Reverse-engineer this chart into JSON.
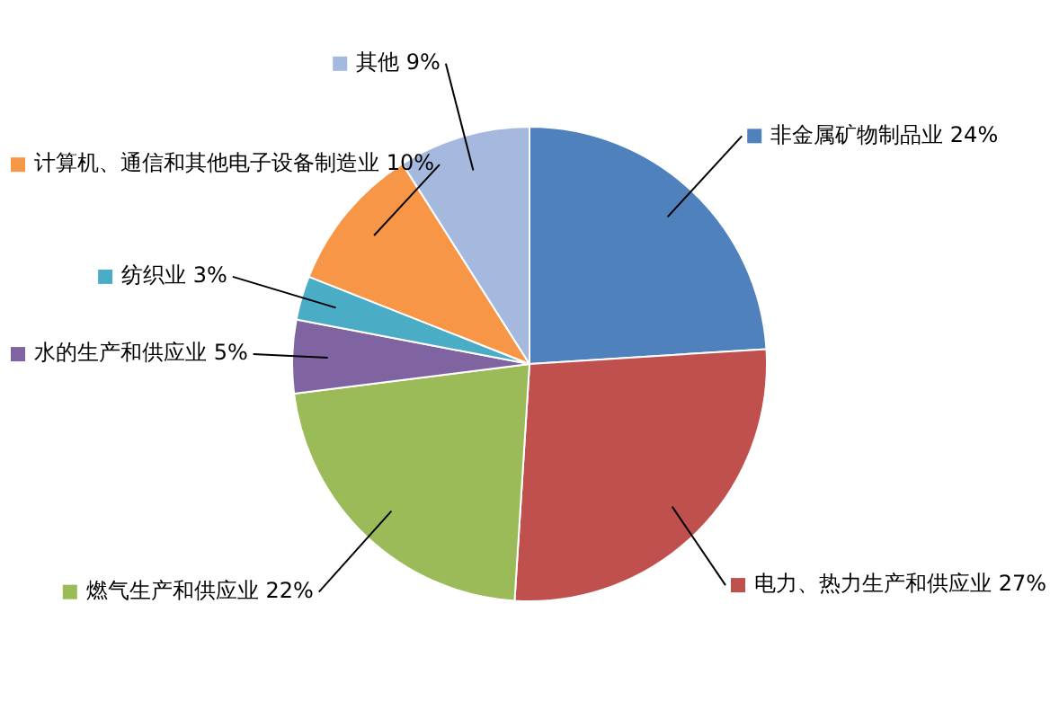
{
  "chart_data": {
    "type": "pie",
    "categories": [
      "非金属矿物制品业",
      "电力、热力生产和供应业",
      "燃气生产和供应业",
      "水的生产和供应业",
      "纺织业",
      "计算机、通信和其他电子设备制造业",
      "其他"
    ],
    "values": [
      24,
      27,
      22,
      5,
      3,
      10,
      9
    ],
    "value_labels": [
      "24%",
      "27%",
      "22%",
      "5%",
      "3%",
      "10%",
      "9%"
    ],
    "colors": [
      "#4f81bd",
      "#c0504d",
      "#9bbb59",
      "#8064a2",
      "#4bacc6",
      "#f79646",
      "#a5b9df"
    ],
    "legend": "right"
  }
}
